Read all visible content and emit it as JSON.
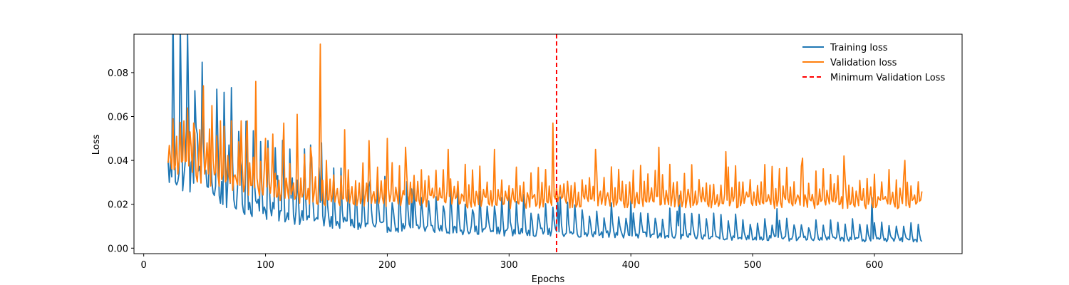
{
  "chart_data": {
    "type": "line",
    "title": "",
    "xlabel": "Epochs",
    "ylabel": "Loss",
    "xlim": [
      -8,
      672
    ],
    "ylim": [
      -0.0025,
      0.0975
    ],
    "xticks": [
      0,
      100,
      200,
      300,
      400,
      500,
      600
    ],
    "yticks": [
      0.0,
      0.02,
      0.04,
      0.06,
      0.08
    ],
    "ytick_labels": [
      "0.00",
      "0.02",
      "0.04",
      "0.06",
      "0.08"
    ],
    "grid": false,
    "legend_position": "top-right",
    "x_start": 20,
    "x_end": 639,
    "series": [
      {
        "name": "Training loss",
        "color": "#1f77b4",
        "keypoints": [
          [
            20,
            0.0475
          ],
          [
            25,
            0.047
          ],
          [
            30,
            0.046
          ],
          [
            40,
            0.044
          ],
          [
            60,
            0.035
          ],
          [
            80,
            0.028
          ],
          [
            100,
            0.023
          ],
          [
            120,
            0.02
          ],
          [
            140,
            0.017
          ],
          [
            160,
            0.015
          ],
          [
            200,
            0.013
          ],
          [
            250,
            0.0115
          ],
          [
            300,
            0.01
          ],
          [
            340,
            0.0095
          ],
          [
            400,
            0.008
          ],
          [
            450,
            0.007
          ],
          [
            500,
            0.0062
          ],
          [
            550,
            0.0057
          ],
          [
            600,
            0.0052
          ],
          [
            639,
            0.005
          ]
        ],
        "spikes": [
          [
            35,
            0.054
          ],
          [
            44,
            0.052
          ],
          [
            54,
            0.045
          ],
          [
            70,
            0.047
          ],
          [
            80,
            0.037
          ],
          [
            110,
            0.033
          ],
          [
            122,
            0.032
          ],
          [
            137,
            0.047
          ],
          [
            146,
            0.048
          ],
          [
            185,
            0.028
          ],
          [
            220,
            0.027
          ],
          [
            300,
            0.025
          ],
          [
            340,
            0.022
          ],
          [
            400,
            0.022
          ],
          [
            440,
            0.024
          ],
          [
            520,
            0.018
          ],
          [
            598,
            0.023
          ]
        ]
      },
      {
        "name": "Validation loss",
        "color": "#ff7f0e",
        "keypoints": [
          [
            20,
            0.039
          ],
          [
            30,
            0.04
          ],
          [
            40,
            0.038
          ],
          [
            60,
            0.034
          ],
          [
            80,
            0.031
          ],
          [
            100,
            0.028
          ],
          [
            120,
            0.026
          ],
          [
            150,
            0.024
          ],
          [
            200,
            0.0235
          ],
          [
            250,
            0.023
          ],
          [
            300,
            0.0225
          ],
          [
            400,
            0.023
          ],
          [
            500,
            0.0225
          ],
          [
            600,
            0.022
          ],
          [
            639,
            0.0225
          ]
        ],
        "spikes": [
          [
            27,
            0.051
          ],
          [
            33,
            0.058
          ],
          [
            38,
            0.053
          ],
          [
            41,
            0.057
          ],
          [
            46,
            0.054
          ],
          [
            49,
            0.074
          ],
          [
            52,
            0.048
          ],
          [
            56,
            0.065
          ],
          [
            63,
            0.058
          ],
          [
            72,
            0.058
          ],
          [
            80,
            0.058
          ],
          [
            85,
            0.058
          ],
          [
            92,
            0.076
          ],
          [
            100,
            0.05
          ],
          [
            106,
            0.052
          ],
          [
            115,
            0.057
          ],
          [
            126,
            0.061
          ],
          [
            137,
            0.046
          ],
          [
            145,
            0.093
          ],
          [
            150,
            0.04
          ],
          [
            165,
            0.054
          ],
          [
            185,
            0.049
          ],
          [
            200,
            0.05
          ],
          [
            215,
            0.046
          ],
          [
            250,
            0.045
          ],
          [
            288,
            0.045
          ],
          [
            336,
            0.057
          ],
          [
            371,
            0.045
          ],
          [
            423,
            0.046
          ],
          [
            478,
            0.044
          ],
          [
            541,
            0.041
          ],
          [
            575,
            0.042
          ],
          [
            625,
            0.04
          ]
        ]
      }
    ],
    "vline": {
      "name": "Minimum Validation Loss",
      "x": 339,
      "color": "#ff0000",
      "style": "dashed"
    }
  }
}
